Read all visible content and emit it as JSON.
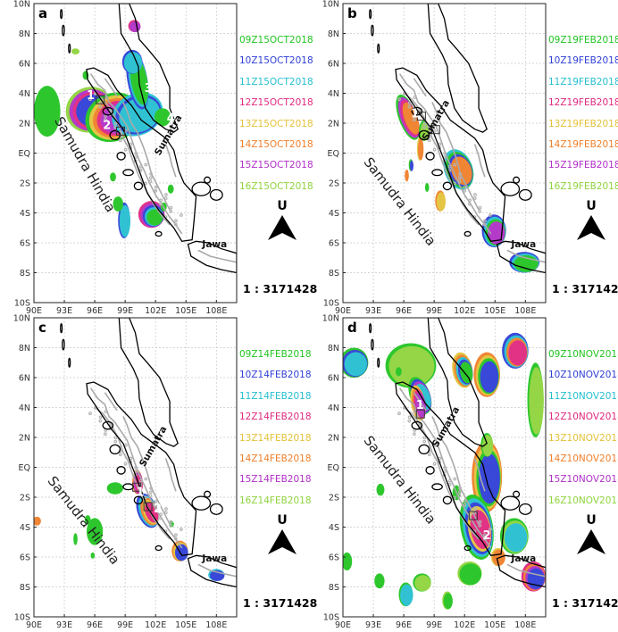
{
  "yticks": [
    "10N",
    "8N",
    "6N",
    "4N",
    "2N",
    "EQ",
    "2S",
    "4S",
    "6S",
    "8S",
    "10S"
  ],
  "xticks": [
    "90E",
    "93E",
    "96E",
    "99E",
    "102E",
    "105E",
    "108E"
  ],
  "place_labels": {
    "ocean": "Samudra Hindia",
    "island": "Sumatra",
    "java": "Jawa"
  },
  "north_letter": "U",
  "scale_text": "1 : 3171428",
  "colors": {
    "c1": "#22c522",
    "c2": "#2f3fd6",
    "c3": "#25bfd0",
    "c4": "#e0287f",
    "c5": "#e3c23a",
    "c6": "#f07f2a",
    "c7": "#b130c8",
    "c8": "#8fd43d"
  },
  "panels": [
    {
      "id": "a",
      "letter": "a",
      "legend": [
        "09Z15OCT2018",
        "10Z15OCT2018",
        "11Z15OCT2018",
        "12Z15OCT2018",
        "13Z15OCT2018",
        "14Z15OCT2018",
        "15Z15OCT2018",
        "16Z15OCT2018"
      ],
      "numbers": [
        "1",
        "2",
        "3",
        "4"
      ]
    },
    {
      "id": "b",
      "letter": "b",
      "legend": [
        "09Z19FEB2018",
        "10Z19FEB2018",
        "11Z19FEB2018",
        "12Z19FEB2018",
        "13Z19FEB2018",
        "14Z19FEB2018",
        "15Z19FEB2018",
        "16Z19FEB2018"
      ],
      "numbers": [
        "1"
      ]
    },
    {
      "id": "c",
      "letter": "c",
      "legend": [
        "09Z14FEB2018",
        "10Z14FEB2018",
        "11Z14FEB2018",
        "12Z14FEB2018",
        "13Z14FEB2018",
        "14Z14FEB2018",
        "15Z14FEB2018",
        "16Z14FEB2018"
      ],
      "numbers": [
        "1",
        "2"
      ]
    },
    {
      "id": "d",
      "letter": "d",
      "legend": [
        "09Z10NOV2018",
        "10Z10NOV2018",
        "11Z10NOV2018",
        "12Z10NOV2018",
        "13Z10NOV2018",
        "14Z10NOV2018",
        "15Z10NOV2018",
        "16Z10NOV2018"
      ],
      "numbers": [
        "1",
        "2"
      ]
    }
  ]
}
